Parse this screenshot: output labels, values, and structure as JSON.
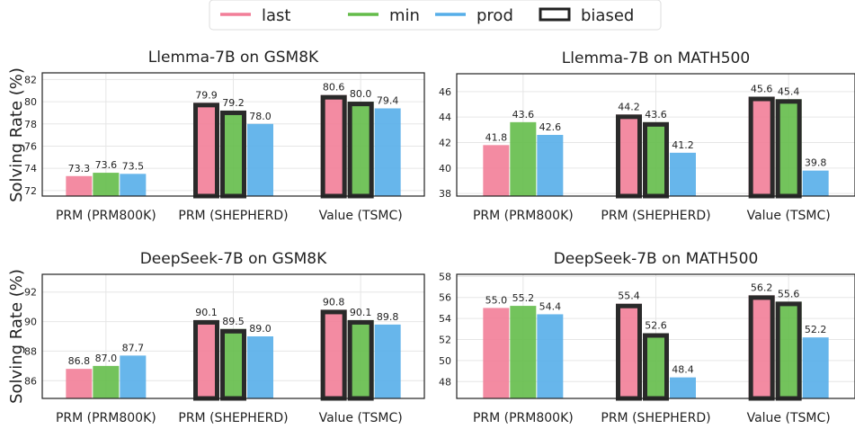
{
  "legend": {
    "items": [
      {
        "label": "last",
        "color": "#f27e98",
        "kind": "line"
      },
      {
        "label": "min",
        "color": "#64bc4a",
        "kind": "line"
      },
      {
        "label": "prod",
        "color": "#56aee9",
        "kind": "line"
      },
      {
        "label": "biased",
        "color": "#222222",
        "kind": "box"
      }
    ]
  },
  "ylabel": "Solving Rate (%)",
  "chart_data": [
    {
      "type": "bar",
      "title": "Llemma-7B on GSM8K",
      "categories": [
        "PRM (PRM800K)",
        "PRM (SHEPHERD)",
        "Value (TSMC)"
      ],
      "ylim": [
        71.5,
        82.6
      ],
      "yticks": [
        72,
        74,
        76,
        78,
        80,
        82
      ],
      "series": [
        {
          "name": "last",
          "values": [
            73.3,
            79.9,
            80.6
          ],
          "biased": [
            false,
            true,
            true
          ]
        },
        {
          "name": "min",
          "values": [
            73.6,
            79.2,
            80.0
          ],
          "biased": [
            false,
            true,
            true
          ]
        },
        {
          "name": "prod",
          "values": [
            73.5,
            78.0,
            79.4
          ],
          "biased": [
            false,
            false,
            false
          ]
        }
      ],
      "labels": [
        "73.3",
        "73.6",
        "73.5",
        "79.9",
        "79.2",
        "78.0",
        "80.6",
        "80.0",
        "79.4"
      ],
      "grid": true
    },
    {
      "type": "bar",
      "title": "Llemma-7B on MATH500",
      "categories": [
        "PRM (PRM800K)",
        "PRM (SHEPHERD)",
        "Value (TSMC)"
      ],
      "ylim": [
        37.8,
        47.4
      ],
      "yticks": [
        38,
        40,
        42,
        44,
        46
      ],
      "series": [
        {
          "name": "last",
          "values": [
            41.8,
            44.2,
            45.6
          ],
          "biased": [
            false,
            true,
            true
          ]
        },
        {
          "name": "min",
          "values": [
            43.6,
            43.6,
            45.4
          ],
          "biased": [
            false,
            true,
            true
          ]
        },
        {
          "name": "prod",
          "values": [
            42.6,
            41.2,
            39.8
          ],
          "biased": [
            false,
            false,
            false
          ]
        }
      ],
      "labels": [
        "41.8",
        "43.6",
        "42.6",
        "44.2",
        "43.6",
        "41.2",
        "45.6",
        "45.4",
        "39.8"
      ],
      "grid": true
    },
    {
      "type": "bar",
      "title": "DeepSeek-7B on GSM8K",
      "categories": [
        "PRM (PRM800K)",
        "PRM (SHEPHERD)",
        "Value (TSMC)"
      ],
      "ylim": [
        84.8,
        93.2
      ],
      "yticks": [
        86,
        88,
        90,
        92
      ],
      "series": [
        {
          "name": "last",
          "values": [
            86.8,
            90.1,
            90.8
          ],
          "biased": [
            false,
            true,
            true
          ]
        },
        {
          "name": "min",
          "values": [
            87.0,
            89.5,
            90.1
          ],
          "biased": [
            false,
            true,
            true
          ]
        },
        {
          "name": "prod",
          "values": [
            87.7,
            89.0,
            89.8
          ],
          "biased": [
            false,
            false,
            false
          ]
        }
      ],
      "labels": [
        "86.8",
        "87.0",
        "87.7",
        "90.1",
        "89.5",
        "89.0",
        "90.8",
        "90.1",
        "89.8"
      ],
      "grid": true
    },
    {
      "type": "bar",
      "title": "DeepSeek-7B on MATH500",
      "categories": [
        "PRM (PRM800K)",
        "PRM (SHEPHERD)",
        "Value (TSMC)"
      ],
      "ylim": [
        46.4,
        58.2
      ],
      "yticks": [
        48,
        50,
        52,
        54,
        56,
        58
      ],
      "series": [
        {
          "name": "last",
          "values": [
            55.0,
            55.4,
            56.2
          ],
          "biased": [
            false,
            true,
            true
          ]
        },
        {
          "name": "min",
          "values": [
            55.2,
            52.6,
            55.6
          ],
          "biased": [
            false,
            true,
            true
          ]
        },
        {
          "name": "prod",
          "values": [
            54.4,
            48.4,
            52.2
          ],
          "biased": [
            false,
            false,
            false
          ]
        }
      ],
      "labels": [
        "55.0",
        "55.2",
        "54.4",
        "55.4",
        "52.6",
        "48.4",
        "56.2",
        "55.6",
        "52.2"
      ],
      "grid": true
    }
  ]
}
